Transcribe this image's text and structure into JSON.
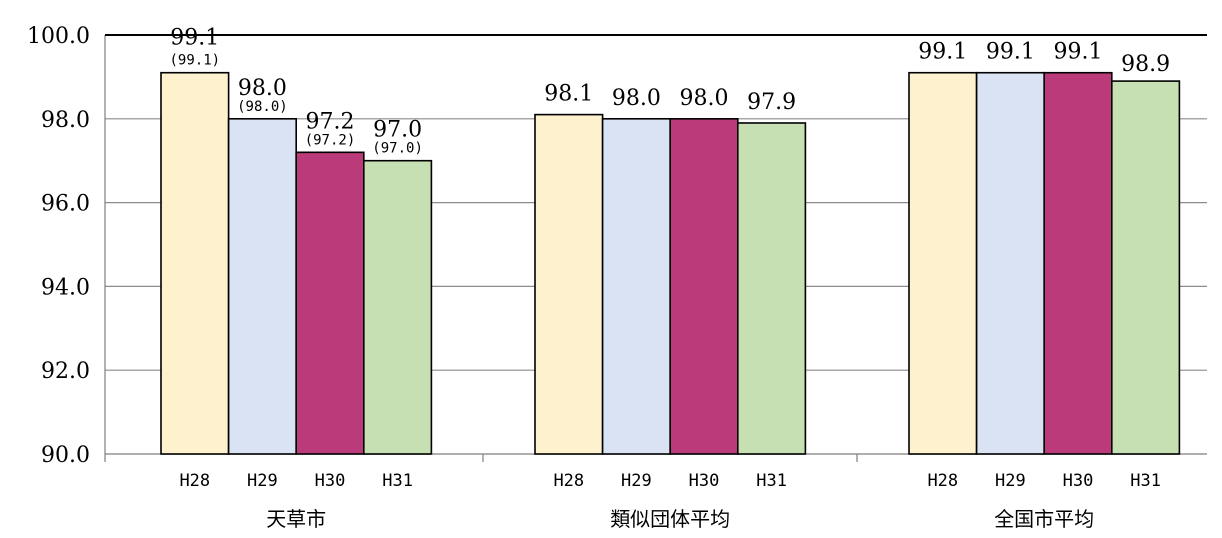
{
  "chart_data": {
    "type": "bar",
    "ylim": [
      90.0,
      100.0
    ],
    "yticks": [
      "90.0",
      "92.0",
      "94.0",
      "96.0",
      "98.0",
      "100.0"
    ],
    "grid": true,
    "series_colors": [
      "#fdf2cd",
      "#dae3f3",
      "#bb3b7a",
      "#c6e0b4"
    ],
    "groups": [
      {
        "name": "天草市",
        "categories": [
          "H28",
          "H29",
          "H30",
          "H31"
        ],
        "values": [
          99.1,
          98.0,
          97.2,
          97.0
        ],
        "labels": [
          "99.1",
          "98.0",
          "97.2",
          "97.0"
        ],
        "sublabels": [
          "(99.1)",
          "(98.0)",
          "(97.2)",
          "(97.0)"
        ]
      },
      {
        "name": "類似団体平均",
        "categories": [
          "H28",
          "H29",
          "H30",
          "H31"
        ],
        "values": [
          98.1,
          98.0,
          98.0,
          97.9
        ],
        "labels": [
          "98.1",
          "98.0",
          "98.0",
          "97.9"
        ],
        "sublabels": []
      },
      {
        "name": "全国市平均",
        "categories": [
          "H28",
          "H29",
          "H30",
          "H31"
        ],
        "values": [
          99.1,
          99.1,
          99.1,
          98.9
        ],
        "labels": [
          "99.1",
          "99.1",
          "99.1",
          "98.9"
        ],
        "sublabels": []
      }
    ]
  }
}
